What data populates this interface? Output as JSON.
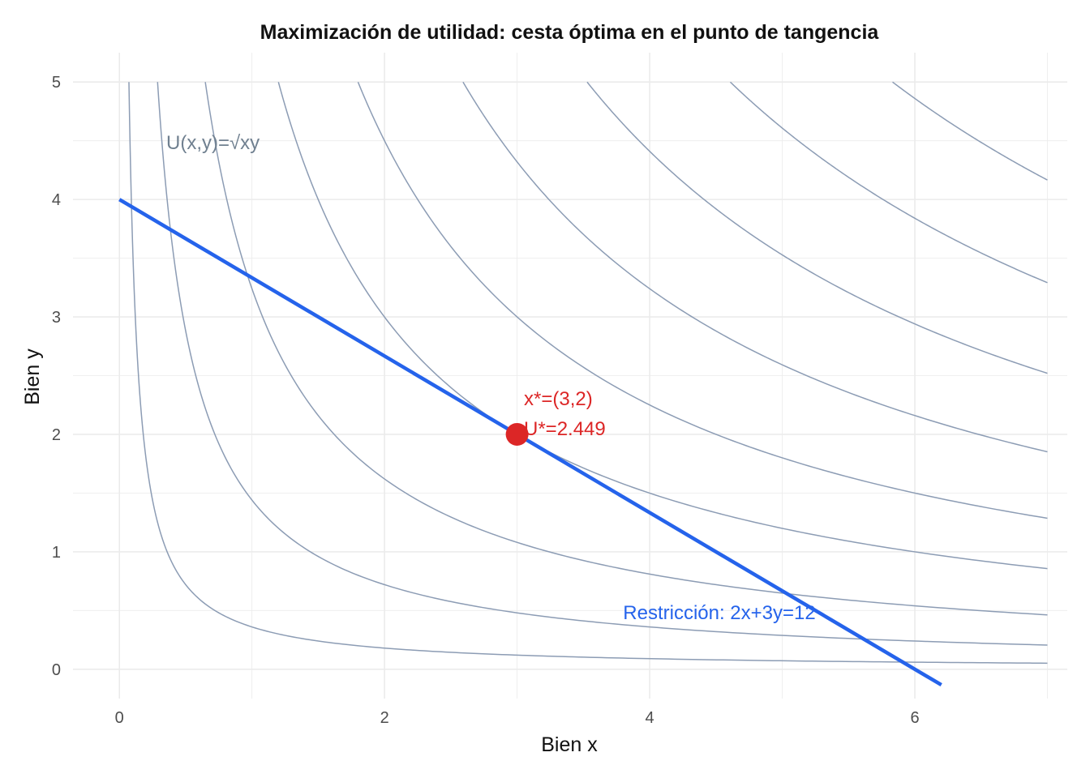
{
  "chart_data": {
    "type": "line",
    "title": "Maximización de utilidad: cesta óptima en el punto de tangencia",
    "xlabel": "Bien x",
    "ylabel": "Bien y",
    "xlim": [
      -0.35,
      7.15
    ],
    "ylim": [
      -0.25,
      5.25
    ],
    "x_ticks": [
      0,
      2,
      4,
      6
    ],
    "y_ticks": [
      0,
      1,
      2,
      3,
      4,
      5
    ],
    "grid": true,
    "utility_formula": "U(x,y)=√xy",
    "indifference_curves": {
      "x_max": 7,
      "y_max": 5,
      "u_levels": [
        0.6,
        1.2,
        1.8,
        2.449,
        3.0,
        3.6,
        4.2,
        4.8,
        5.4
      ]
    },
    "budget_line": {
      "label": "Restricción: 2x+3y=12",
      "px": 2,
      "py": 3,
      "income": 12,
      "x_range": [
        0,
        6.2
      ]
    },
    "optimum": {
      "x": 3,
      "y": 2,
      "label_bundle": "x*=(3,2)",
      "label_utility": "U*=2.449"
    },
    "colors": {
      "curves": "#8c9cb4",
      "budget": "#2563eb",
      "optimum": "#dc2626",
      "formula": "#708090",
      "grid": "#ebebeb"
    }
  }
}
